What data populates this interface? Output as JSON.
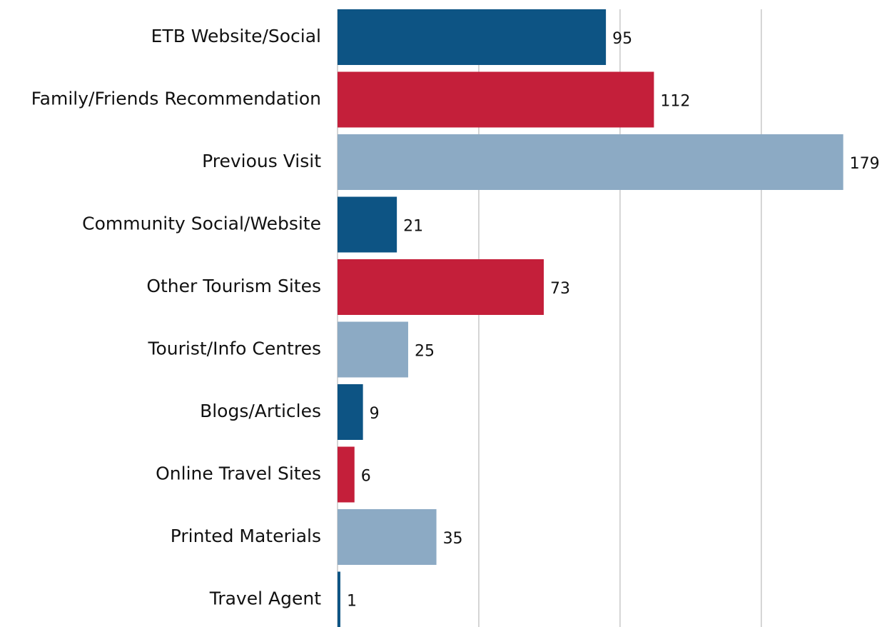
{
  "chart_data": {
    "type": "barh",
    "categories": [
      "ETB Website/Social",
      "Family/Friends Recommendation",
      "Previous Visit",
      "Community Social/Website",
      "Other Tourism Sites",
      "Tourist/Info Centres",
      "Blogs/Articles",
      "Online Travel Sites",
      "Printed Materials",
      "Travel Agent"
    ],
    "values": [
      95,
      112,
      179,
      21,
      73,
      25,
      9,
      6,
      35,
      1
    ],
    "colors": [
      "#0d5484",
      "#c41f3a",
      "#8caac4",
      "#0d5484",
      "#c41f3a",
      "#8caac4",
      "#0d5484",
      "#c41f3a",
      "#8caac4",
      "#0d5484"
    ],
    "xlim": [
      0,
      195
    ],
    "xticks": [
      0,
      50,
      100,
      150
    ],
    "grid": true
  }
}
